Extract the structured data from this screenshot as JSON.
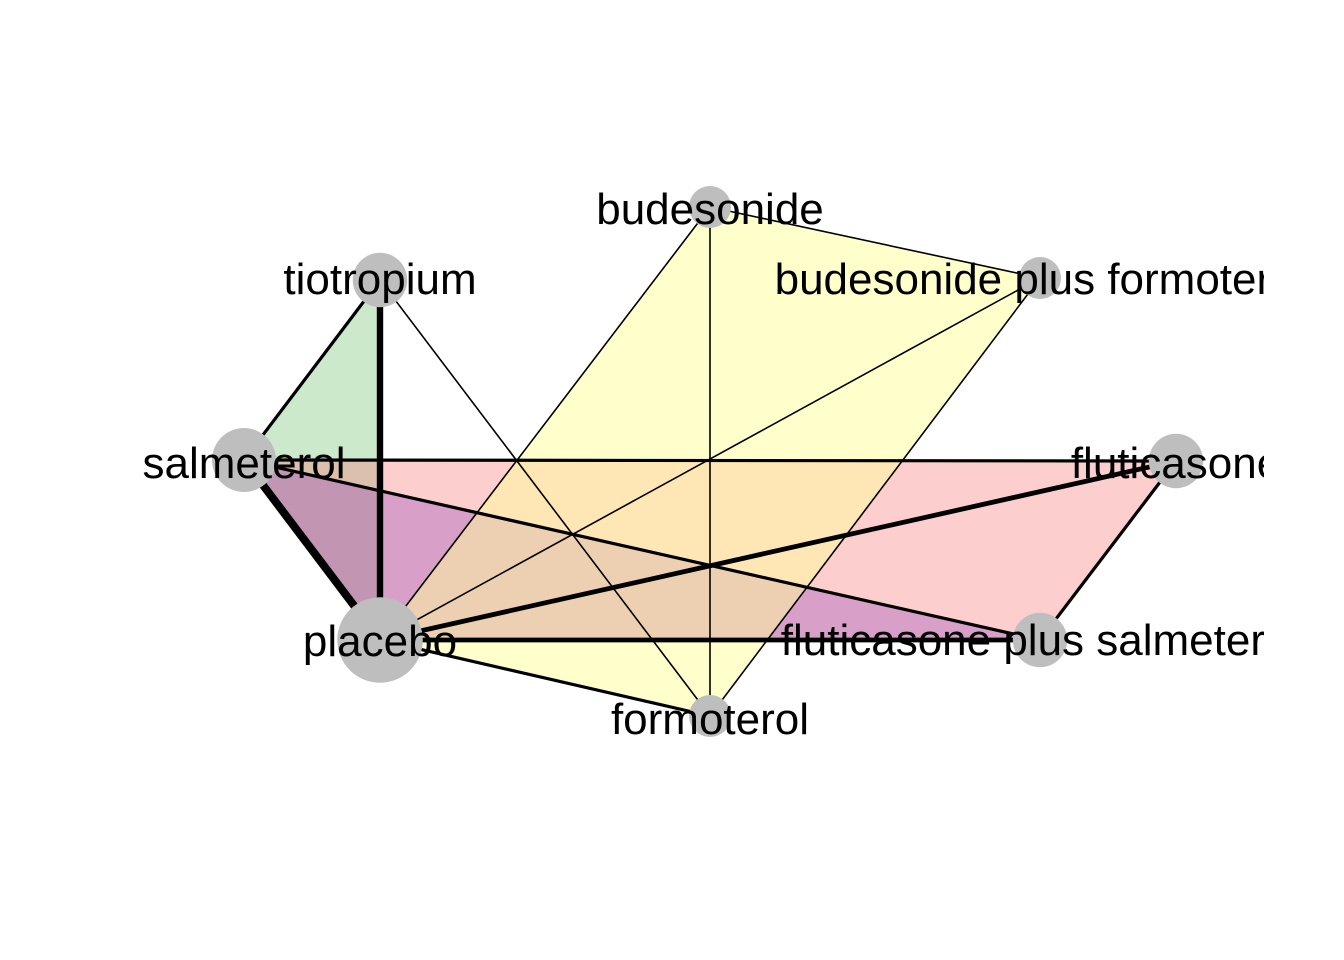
{
  "diagram": {
    "nodes": [
      {
        "id": "budesonide",
        "label": "budesonide",
        "size": 1
      },
      {
        "id": "budesonide_formoterol",
        "label": "budesonide plus formoterol",
        "size": 1
      },
      {
        "id": "fluticasone",
        "label": "fluticasone",
        "size": 2
      },
      {
        "id": "fluticasone_salmeterol",
        "label": "fluticasone plus salmeterol",
        "size": 2
      },
      {
        "id": "formoterol",
        "label": "formoterol",
        "size": 1
      },
      {
        "id": "placebo",
        "label": "placebo",
        "size": 6
      },
      {
        "id": "salmeterol",
        "label": "salmeterol",
        "size": 3
      },
      {
        "id": "tiotropium",
        "label": "tiotropium",
        "size": 2
      }
    ],
    "edges": [
      {
        "from": "salmeterol",
        "to": "placebo",
        "weight": 5
      },
      {
        "from": "tiotropium",
        "to": "placebo",
        "weight": 4
      },
      {
        "from": "fluticasone",
        "to": "placebo",
        "weight": 3
      },
      {
        "from": "fluticasone_salmeterol",
        "to": "placebo",
        "weight": 3
      },
      {
        "from": "salmeterol",
        "to": "tiotropium",
        "weight": 2
      },
      {
        "from": "salmeterol",
        "to": "fluticasone",
        "weight": 2
      },
      {
        "from": "salmeterol",
        "to": "fluticasone_salmeterol",
        "weight": 2
      },
      {
        "from": "fluticasone",
        "to": "fluticasone_salmeterol",
        "weight": 2
      },
      {
        "from": "placebo",
        "to": "formoterol",
        "weight": 2
      },
      {
        "from": "tiotropium",
        "to": "formoterol",
        "weight": 1
      },
      {
        "from": "budesonide",
        "to": "budesonide_formoterol",
        "weight": 1
      },
      {
        "from": "budesonide",
        "to": "placebo",
        "weight": 1
      },
      {
        "from": "budesonide",
        "to": "formoterol",
        "weight": 1
      },
      {
        "from": "budesonide_formoterol",
        "to": "placebo",
        "weight": 1
      },
      {
        "from": "budesonide_formoterol",
        "to": "formoterol",
        "weight": 1
      }
    ],
    "regions": [
      {
        "name": "tiotropium-salmeterol-placebo",
        "nodes": [
          "tiotropium",
          "salmeterol",
          "placebo"
        ],
        "color": "#7fc97f",
        "opacity": 0.4
      },
      {
        "name": "salmeterol-fluticasone-fluticasone-salmeterol-placebo",
        "nodes": [
          "salmeterol",
          "fluticasone",
          "fluticasone_salmeterol",
          "placebo"
        ],
        "color": "#f87d7d",
        "opacity": 0.38
      },
      {
        "name": "salmeterol-fluticasone-salmeterol-placebo",
        "nodes": [
          "salmeterol",
          "fluticasone_salmeterol",
          "placebo"
        ],
        "color": "#8b3fbf",
        "opacity": 0.32
      },
      {
        "name": "budesonide-combo-formoterol-placebo",
        "nodes": [
          "budesonide",
          "budesonide_formoterol",
          "formoterol",
          "placebo"
        ],
        "color": "#ffff99",
        "opacity": 0.5
      }
    ],
    "node_color": "#bebebe",
    "edge_color": "#000000"
  }
}
